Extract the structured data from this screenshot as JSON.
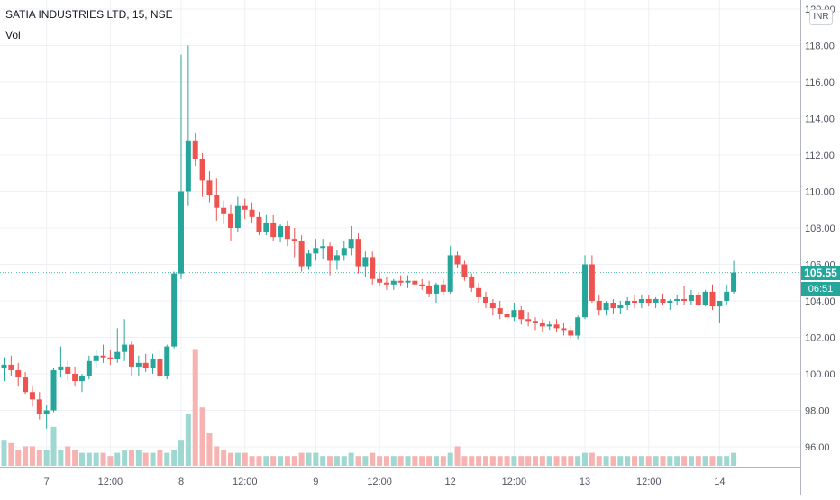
{
  "header": {
    "title": "SATIA INDUSTRIES LTD, 15, NSE",
    "volume_label": "Vol",
    "currency": "INR"
  },
  "last_price": {
    "value_text": "105.55",
    "countdown": "06:51"
  },
  "colors": {
    "up": "#26a69a",
    "down": "#ef5350",
    "up_vol": "#9fd8d1",
    "down_vol": "#f7b3b1",
    "grid": "#eef0f4",
    "axis_text": "#50535e"
  },
  "chart_data": {
    "type": "candlestick",
    "title": "SATIA INDUSTRIES LTD, 15, NSE",
    "y_tick_labels": [
      "96.00",
      "98.00",
      "100.00",
      "102.00",
      "104.00",
      "106.00",
      "108.00",
      "110.00",
      "112.00",
      "114.00",
      "116.00",
      "118.00",
      "120.00"
    ],
    "ylim": [
      95.3,
      120.3
    ],
    "last_price": 105.55,
    "x_tick_labels": [
      {
        "label": "7",
        "index": 6
      },
      {
        "label": "12:00",
        "index": 15
      },
      {
        "label": "8",
        "index": 25
      },
      {
        "label": "12:00",
        "index": 34
      },
      {
        "label": "9",
        "index": 44
      },
      {
        "label": "12:00",
        "index": 53
      },
      {
        "label": "12",
        "index": 63
      },
      {
        "label": "12:00",
        "index": 72
      },
      {
        "label": "13",
        "index": 82
      },
      {
        "label": "12:00",
        "index": 91
      },
      {
        "label": "14",
        "index": 101
      }
    ],
    "grid": true,
    "legend": "none",
    "candles": [
      [
        100.3,
        100.9,
        99.6,
        100.5
      ],
      [
        100.5,
        101.0,
        99.9,
        100.2
      ],
      [
        100.2,
        100.6,
        99.3,
        99.8
      ],
      [
        99.8,
        100.1,
        98.9,
        99.0
      ],
      [
        99.0,
        99.3,
        98.2,
        98.6
      ],
      [
        98.6,
        99.0,
        97.5,
        97.8
      ],
      [
        97.8,
        98.3,
        97.0,
        98.0
      ],
      [
        98.0,
        100.3,
        97.9,
        100.2
      ],
      [
        100.2,
        101.5,
        99.8,
        100.4
      ],
      [
        100.4,
        100.7,
        99.6,
        100.0
      ],
      [
        100.0,
        100.4,
        99.3,
        99.6
      ],
      [
        99.6,
        100.0,
        99.0,
        99.9
      ],
      [
        99.9,
        101.0,
        99.7,
        100.7
      ],
      [
        100.7,
        101.3,
        100.3,
        101.0
      ],
      [
        101.0,
        101.6,
        100.6,
        100.9
      ],
      [
        100.9,
        101.3,
        100.5,
        100.8
      ],
      [
        100.8,
        102.5,
        100.6,
        101.2
      ],
      [
        101.2,
        103.0,
        100.7,
        101.6
      ],
      [
        101.6,
        101.8,
        99.9,
        100.4
      ],
      [
        100.4,
        101.0,
        99.9,
        100.6
      ],
      [
        100.6,
        101.1,
        100.1,
        100.3
      ],
      [
        100.3,
        101.1,
        100.0,
        100.8
      ],
      [
        100.8,
        101.3,
        99.8,
        99.9
      ],
      [
        99.9,
        101.6,
        99.7,
        101.5
      ],
      [
        101.5,
        105.6,
        101.4,
        105.5
      ],
      [
        105.5,
        117.5,
        105.2,
        110.0
      ],
      [
        110.0,
        118.0,
        109.2,
        112.8
      ],
      [
        112.8,
        113.2,
        111.4,
        111.8
      ],
      [
        111.8,
        112.1,
        109.7,
        110.6
      ],
      [
        110.6,
        111.1,
        109.4,
        109.8
      ],
      [
        109.8,
        110.7,
        108.4,
        109.1
      ],
      [
        109.1,
        109.5,
        108.2,
        108.8
      ],
      [
        108.8,
        109.3,
        107.3,
        108.0
      ],
      [
        108.0,
        109.7,
        107.8,
        109.2
      ],
      [
        109.2,
        109.6,
        108.5,
        109.0
      ],
      [
        109.0,
        109.4,
        108.3,
        108.6
      ],
      [
        108.6,
        108.9,
        107.6,
        107.8
      ],
      [
        107.8,
        108.7,
        107.6,
        108.3
      ],
      [
        108.3,
        108.7,
        107.3,
        107.5
      ],
      [
        107.5,
        108.2,
        107.2,
        108.1
      ],
      [
        108.1,
        108.4,
        107.0,
        107.4
      ],
      [
        107.4,
        108.0,
        106.4,
        107.3
      ],
      [
        107.3,
        107.6,
        105.6,
        105.9
      ],
      [
        105.9,
        106.8,
        105.7,
        106.6
      ],
      [
        106.6,
        107.4,
        106.2,
        106.9
      ],
      [
        106.9,
        107.4,
        106.3,
        107.0
      ],
      [
        107.0,
        107.2,
        105.4,
        106.2
      ],
      [
        106.2,
        106.8,
        105.7,
        106.5
      ],
      [
        106.5,
        107.3,
        106.2,
        106.9
      ],
      [
        106.9,
        108.1,
        106.5,
        107.4
      ],
      [
        107.4,
        107.7,
        105.5,
        105.9
      ],
      [
        105.9,
        106.7,
        105.3,
        106.4
      ],
      [
        106.4,
        106.7,
        104.9,
        105.2
      ],
      [
        105.2,
        105.6,
        104.8,
        105.0
      ],
      [
        105.0,
        105.3,
        104.6,
        104.9
      ],
      [
        104.9,
        105.2,
        104.6,
        105.1
      ],
      [
        105.1,
        105.4,
        104.8,
        105.0
      ],
      [
        105.0,
        105.4,
        104.7,
        105.1
      ],
      [
        105.1,
        105.3,
        104.9,
        104.9
      ],
      [
        104.9,
        105.2,
        104.6,
        104.8
      ],
      [
        104.8,
        105.1,
        104.2,
        104.4
      ],
      [
        104.4,
        105.0,
        103.9,
        104.9
      ],
      [
        104.9,
        105.2,
        104.3,
        104.5
      ],
      [
        104.5,
        107.0,
        104.4,
        106.5
      ],
      [
        106.5,
        106.7,
        105.8,
        106.0
      ],
      [
        106.0,
        106.2,
        105.1,
        105.3
      ],
      [
        105.3,
        105.5,
        104.5,
        104.7
      ],
      [
        104.7,
        105.0,
        103.9,
        104.2
      ],
      [
        104.2,
        104.5,
        103.6,
        103.9
      ],
      [
        103.9,
        104.1,
        103.2,
        103.6
      ],
      [
        103.6,
        104.0,
        103.0,
        103.3
      ],
      [
        103.3,
        103.7,
        102.8,
        103.1
      ],
      [
        103.1,
        103.9,
        102.9,
        103.5
      ],
      [
        103.5,
        103.7,
        102.7,
        103.0
      ],
      [
        103.0,
        103.4,
        102.6,
        102.9
      ],
      [
        102.9,
        103.1,
        102.4,
        102.8
      ],
      [
        102.8,
        103.0,
        102.3,
        102.6
      ],
      [
        102.6,
        102.9,
        102.4,
        102.7
      ],
      [
        102.7,
        103.0,
        102.3,
        102.5
      ],
      [
        102.5,
        102.8,
        102.1,
        102.4
      ],
      [
        102.4,
        102.6,
        101.9,
        102.1
      ],
      [
        102.1,
        103.2,
        101.9,
        103.1
      ],
      [
        103.1,
        106.5,
        103.0,
        106.0
      ],
      [
        106.0,
        106.5,
        103.9,
        104.0
      ],
      [
        104.0,
        104.3,
        103.2,
        103.5
      ],
      [
        103.5,
        104.0,
        103.2,
        103.9
      ],
      [
        103.9,
        104.1,
        103.3,
        103.6
      ],
      [
        103.6,
        104.0,
        103.3,
        103.8
      ],
      [
        103.8,
        104.2,
        103.5,
        104.0
      ],
      [
        104.0,
        104.3,
        103.6,
        103.9
      ],
      [
        103.9,
        104.3,
        103.6,
        104.1
      ],
      [
        104.1,
        104.3,
        103.7,
        103.9
      ],
      [
        103.9,
        104.2,
        103.6,
        104.1
      ],
      [
        104.1,
        104.4,
        103.8,
        103.9
      ],
      [
        103.9,
        104.1,
        103.5,
        104.0
      ],
      [
        104.0,
        104.3,
        103.8,
        104.1
      ],
      [
        104.1,
        104.8,
        103.8,
        104.0
      ],
      [
        104.0,
        104.6,
        103.8,
        104.3
      ],
      [
        104.3,
        104.5,
        103.7,
        103.8
      ],
      [
        103.8,
        104.6,
        103.7,
        104.5
      ],
      [
        104.5,
        104.9,
        103.5,
        103.7
      ],
      [
        103.7,
        104.0,
        102.8,
        104.0
      ],
      [
        104.0,
        104.9,
        103.8,
        104.5
      ],
      [
        104.5,
        106.2,
        104.4,
        105.55
      ]
    ],
    "volume": [
      8,
      7,
      5,
      6,
      6,
      5,
      5,
      12,
      5,
      6,
      5,
      4,
      4,
      4,
      4,
      3,
      4,
      5,
      5,
      5,
      4,
      4,
      5,
      4,
      5,
      8,
      16,
      36,
      18,
      10,
      6,
      5,
      4,
      4,
      4,
      3,
      3,
      3,
      3,
      3,
      3,
      3,
      4,
      4,
      4,
      3,
      3,
      3,
      3,
      4,
      3,
      3,
      4,
      3,
      3,
      3,
      3,
      3,
      3,
      3,
      3,
      3,
      3,
      4,
      6,
      3,
      3,
      3,
      3,
      3,
      3,
      3,
      3,
      3,
      3,
      3,
      3,
      3,
      3,
      3,
      3,
      3,
      4,
      4,
      3,
      3,
      3,
      3,
      3,
      3,
      3,
      3,
      3,
      3,
      3,
      3,
      3,
      3,
      3,
      3,
      3,
      3,
      3,
      4
    ]
  }
}
